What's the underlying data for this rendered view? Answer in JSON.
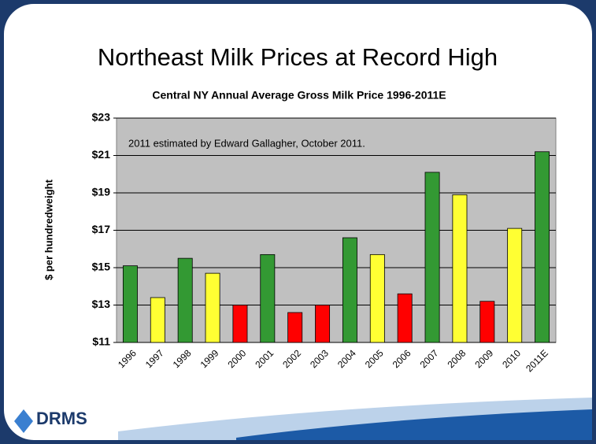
{
  "slide_title": "Northeast Milk Prices at Record High",
  "logo": "DRMS",
  "chart_data": {
    "type": "bar",
    "title": "Central NY Annual Average Gross Milk Price 1996-2011E",
    "y_label": "$ per hundredweight",
    "annotation": "2011 estimated by Edward Gallagher, October 2011.",
    "categories": [
      "1996",
      "1997",
      "1998",
      "1999",
      "2000",
      "2001",
      "2002",
      "2003",
      "2004",
      "2005",
      "2006",
      "2007",
      "2008",
      "2009",
      "2010",
      "2011E"
    ],
    "values": [
      15.1,
      13.4,
      15.5,
      14.7,
      13.0,
      15.7,
      12.6,
      13.0,
      16.6,
      15.7,
      13.6,
      20.1,
      18.9,
      13.2,
      17.1,
      21.2
    ],
    "colors": [
      "#339933",
      "#ffff33",
      "#339933",
      "#ffff33",
      "#ff0000",
      "#339933",
      "#ff0000",
      "#ff0000",
      "#339933",
      "#ffff33",
      "#ff0000",
      "#339933",
      "#ffff33",
      "#ff0000",
      "#ffff33",
      "#339933"
    ],
    "ylim": [
      11,
      23
    ],
    "yticks": [
      {
        "value": 11,
        "label": "$11"
      },
      {
        "value": 13,
        "label": "$13"
      },
      {
        "value": 15,
        "label": "$15"
      },
      {
        "value": 17,
        "label": "$17"
      },
      {
        "value": 19,
        "label": "$19"
      },
      {
        "value": 21,
        "label": "$21"
      },
      {
        "value": 23,
        "label": "$23"
      }
    ],
    "grid": true,
    "plot_background": "#c0c0c0"
  }
}
